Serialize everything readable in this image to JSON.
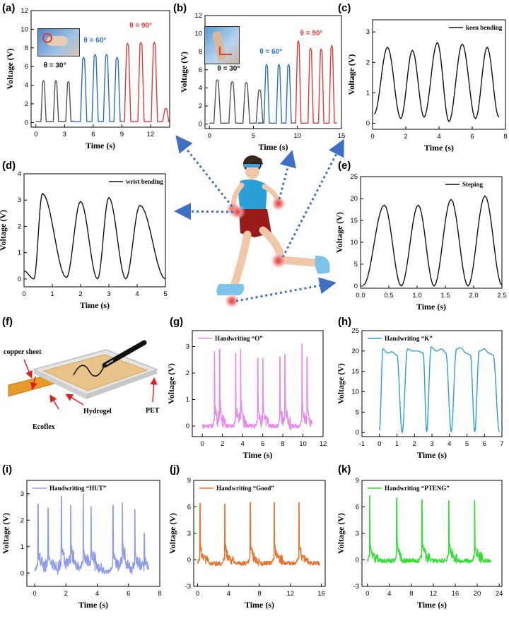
{
  "panels": {
    "a": {
      "label": "(a)"
    },
    "b": {
      "label": "(b)"
    },
    "c": {
      "label": "(c)"
    },
    "d": {
      "label": "(d)"
    },
    "e": {
      "label": "(e)"
    },
    "f": {
      "label": "(f)"
    },
    "g": {
      "label": "(g)"
    },
    "h": {
      "label": "(h)"
    },
    "i": {
      "label": "(i)"
    },
    "j": {
      "label": "(j)"
    },
    "k": {
      "label": "(k)"
    }
  },
  "diagram_f": {
    "copper_sheet": "copper sheet",
    "hydrogel": "Hydrogel",
    "ecoflex": "Ecoflex",
    "pet": "PET"
  },
  "colors": {
    "grey": "#555555",
    "blue": "#2f6fbf",
    "red": "#e23a3a",
    "black": "#111111",
    "violet": "#e58de6",
    "sky": "#2b9fd8",
    "lavender": "#8f9de8",
    "orange": "#e8742c",
    "green": "#33dd33",
    "arrow": "#3f6fc4"
  },
  "chart_data": [
    {
      "id": "a",
      "type": "line",
      "xlabel": "Time (s)",
      "ylabel": "Voltage (V)",
      "xlim": [
        -0.5,
        14
      ],
      "ylim": [
        -0.5,
        12
      ],
      "xticks": [
        0,
        3,
        6,
        9,
        12
      ],
      "yticks": [
        0,
        2,
        4,
        6,
        8,
        10,
        12
      ],
      "annotations": [
        {
          "text": "θ = 30°",
          "x": 0.8,
          "y": 5.9,
          "color": "#111111"
        },
        {
          "text": "θ = 60°",
          "x": 5.0,
          "y": 8.6,
          "color": "#2f6fbf"
        },
        {
          "text": "θ = 90°",
          "x": 9.8,
          "y": 10.2,
          "color": "#e23a3a"
        }
      ],
      "series": [
        {
          "color": "#555555",
          "shape": "pulse",
          "peaks": [
            [
              0.8,
              4.5
            ],
            [
              2.1,
              4.5
            ],
            [
              3.4,
              4.4
            ]
          ],
          "baseline": 0.1,
          "width": 0.5,
          "range": [
            0,
            4.0
          ]
        },
        {
          "color": "#2f6fbf",
          "shape": "pulse",
          "peaks": [
            [
              5.0,
              7.0
            ],
            [
              6.2,
              7.3
            ],
            [
              7.4,
              7.3
            ],
            [
              8.5,
              7.0
            ]
          ],
          "baseline": 0.1,
          "width": 0.6,
          "range": [
            4.0,
            9.0
          ]
        },
        {
          "color": "#e23a3a",
          "shape": "pulse",
          "peaks": [
            [
              9.6,
              8.5
            ],
            [
              11.0,
              8.6
            ],
            [
              12.4,
              8.6
            ],
            [
              13.6,
              1.5
            ]
          ],
          "baseline": 0.1,
          "width": 0.6,
          "range": [
            9.0,
            13.8
          ]
        }
      ]
    },
    {
      "id": "b",
      "type": "line",
      "xlabel": "Time (s)",
      "ylabel": "Voltage (V)",
      "xlim": [
        -0.5,
        15
      ],
      "ylim": [
        -0.5,
        12
      ],
      "xticks": [
        0,
        5,
        10,
        15
      ],
      "yticks": [
        0,
        2,
        4,
        6,
        8,
        10,
        12
      ],
      "annotations": [
        {
          "text": "θ = 30°",
          "x": 0.9,
          "y": 5.9,
          "color": "#111111"
        },
        {
          "text": "θ = 60°",
          "x": 5.7,
          "y": 7.8,
          "color": "#2f6fbf"
        },
        {
          "text": "θ = 90°",
          "x": 10.3,
          "y": 9.8,
          "color": "#e23a3a"
        }
      ],
      "series": [
        {
          "color": "#555555",
          "shape": "pulse",
          "peaks": [
            [
              0.9,
              4.9
            ],
            [
              2.6,
              4.7
            ],
            [
              4.2,
              4.6
            ],
            [
              5.7,
              3.8
            ]
          ],
          "baseline": 0.1,
          "width": 0.7,
          "range": [
            0,
            5.5
          ]
        },
        {
          "color": "#2f6fbf",
          "shape": "pulse",
          "peaks": [
            [
              6.5,
              6.6
            ],
            [
              7.9,
              6.6
            ],
            [
              9.0,
              6.6
            ]
          ],
          "baseline": 0.1,
          "width": 0.55,
          "range": [
            5.5,
            9.5
          ]
        },
        {
          "color": "#e23a3a",
          "shape": "pulse",
          "peaks": [
            [
              10.1,
              9.2
            ],
            [
              11.5,
              8.4
            ],
            [
              12.7,
              8.3
            ],
            [
              13.9,
              8.7
            ]
          ],
          "baseline": 0.1,
          "width": 0.55,
          "range": [
            9.5,
            14.5
          ]
        }
      ]
    },
    {
      "id": "c",
      "type": "line",
      "xlabel": "Time (s)",
      "ylabel": "Voltage (V)",
      "xlim": [
        0,
        8
      ],
      "ylim": [
        -0.2,
        3.4
      ],
      "xticks": [
        0,
        2,
        4,
        6,
        8
      ],
      "yticks": [
        0,
        1,
        2,
        3
      ],
      "legend": "keen bending",
      "legend_position": "top-right",
      "series": [
        {
          "color": "#111111",
          "shape": "wave",
          "peaks": [
            [
              0.9,
              2.5
            ],
            [
              2.4,
              2.4
            ],
            [
              3.9,
              2.65
            ],
            [
              5.4,
              2.6
            ],
            [
              6.9,
              2.5
            ]
          ],
          "troughs": [
            [
              0.1,
              0.3
            ],
            [
              1.7,
              0.15
            ],
            [
              3.1,
              0.2
            ],
            [
              4.6,
              0.05
            ],
            [
              6.2,
              0.15
            ],
            [
              7.6,
              0.2
            ]
          ]
        }
      ]
    },
    {
      "id": "d",
      "type": "line",
      "xlabel": "Time (s)",
      "ylabel": "Voltage (V)",
      "xlim": [
        0,
        5
      ],
      "ylim": [
        -0.3,
        4
      ],
      "xticks": [
        0,
        1,
        2,
        3,
        4,
        5
      ],
      "yticks": [
        0,
        1,
        2,
        3,
        4
      ],
      "legend": "wrist bending",
      "legend_position": "top-right",
      "series": [
        {
          "color": "#111111",
          "shape": "wave",
          "peaks": [
            [
              0.65,
              3.25
            ],
            [
              2.0,
              2.95
            ],
            [
              3.0,
              3.1
            ],
            [
              4.1,
              2.8
            ]
          ],
          "troughs": [
            [
              0.0,
              0.3
            ],
            [
              0.35,
              0.0
            ],
            [
              1.5,
              0.05
            ],
            [
              2.6,
              0.0
            ],
            [
              3.6,
              0.0
            ],
            [
              5.0,
              0.0
            ]
          ]
        }
      ]
    },
    {
      "id": "e",
      "type": "line",
      "xlabel": "Time (s)",
      "ylabel": "Voltage (V)",
      "xlim": [
        0,
        2.5
      ],
      "ylim": [
        -0.5,
        25
      ],
      "xticks": [
        0.0,
        0.5,
        1.0,
        1.5,
        2.0,
        2.5
      ],
      "yticks": [
        0,
        5,
        10,
        15,
        20,
        25
      ],
      "legend": "Steping",
      "legend_position": "top-right",
      "series": [
        {
          "color": "#111111",
          "shape": "wave",
          "peaks": [
            [
              0.42,
              18.5
            ],
            [
              1.02,
              18.5
            ],
            [
              1.6,
              19.8
            ],
            [
              2.2,
              20.6
            ]
          ],
          "troughs": [
            [
              0.05,
              0.2
            ],
            [
              0.72,
              0.0
            ],
            [
              1.3,
              0.0
            ],
            [
              1.9,
              0.0
            ],
            [
              2.5,
              0.2
            ]
          ]
        }
      ]
    },
    {
      "id": "g",
      "type": "line",
      "xlabel": "Time (s)",
      "ylabel": "Voltage (V)",
      "xlim": [
        -1,
        12
      ],
      "ylim": [
        -0.4,
        3.6
      ],
      "xticks": [
        0,
        2,
        4,
        6,
        8,
        10,
        12
      ],
      "yticks": [
        0,
        1,
        2,
        3
      ],
      "legend": "Handwriting “O”",
      "legend_position": "top-left",
      "series": [
        {
          "color": "#e58de6",
          "shape": "spike",
          "events": [
            [
              1.2,
              2.8
            ],
            [
              1.7,
              2.9
            ],
            [
              3.3,
              2.75
            ],
            [
              3.8,
              2.9
            ],
            [
              5.5,
              2.55
            ],
            [
              6.0,
              2.55
            ],
            [
              7.7,
              2.6
            ],
            [
              8.2,
              2.7
            ],
            [
              9.9,
              3.1
            ],
            [
              10.4,
              2.6
            ]
          ],
          "pre": 0.6,
          "baseline": 0.0,
          "xrange": [
            0,
            10.9
          ]
        }
      ]
    },
    {
      "id": "h",
      "type": "line",
      "xlabel": "Time (s)",
      "ylabel": "Voltage (V)",
      "xlim": [
        -1,
        7
      ],
      "ylim": [
        -1,
        25
      ],
      "xticks": [
        -1,
        0,
        1,
        2,
        3,
        4,
        5,
        6,
        7
      ],
      "yticks": [
        0,
        5,
        10,
        15,
        20,
        25
      ],
      "legend": "Handwriting “K”",
      "legend_position": "top-left",
      "series": [
        {
          "color": "#2b9fd8",
          "shape": "wave",
          "peaks": [
            [
              0.2,
              20.5
            ],
            [
              0.45,
              19.5
            ],
            [
              0.7,
              19.8
            ],
            [
              1.0,
              19.0
            ],
            [
              1.6,
              20.5
            ],
            [
              1.9,
              20.0
            ],
            [
              2.2,
              20.0
            ],
            [
              2.5,
              19.5
            ],
            [
              2.95,
              21.0
            ],
            [
              3.25,
              20.0
            ],
            [
              3.55,
              20.5
            ],
            [
              3.8,
              19.5
            ],
            [
              4.4,
              20.5
            ],
            [
              4.65,
              20.8
            ],
            [
              4.95,
              19.5
            ],
            [
              5.2,
              19.0
            ],
            [
              5.7,
              20.0
            ],
            [
              6.0,
              20.5
            ],
            [
              6.25,
              19.5
            ],
            [
              6.5,
              19.0
            ]
          ],
          "troughs": [
            [
              0.0,
              0.5
            ],
            [
              1.3,
              0.0
            ],
            [
              2.7,
              0.2
            ],
            [
              4.1,
              0.2
            ],
            [
              5.45,
              0.2
            ],
            [
              6.85,
              0.2
            ]
          ]
        }
      ]
    },
    {
      "id": "i",
      "type": "line",
      "xlabel": "Time (s)",
      "ylabel": "Voltage (V)",
      "xlim": [
        -0.5,
        8
      ],
      "ylim": [
        -0.5,
        3.5
      ],
      "xticks": [
        0,
        2,
        4,
        6,
        8
      ],
      "yticks": [
        0,
        1,
        2,
        3
      ],
      "legend": "Handwriting “HUT”",
      "legend_position": "top-left",
      "series": [
        {
          "color": "#8f9de8",
          "shape": "spike",
          "events": [
            [
              0.2,
              2.6
            ],
            [
              0.85,
              2.45
            ],
            [
              1.7,
              2.9
            ],
            [
              2.3,
              2.55
            ],
            [
              3.1,
              3.0
            ],
            [
              3.6,
              2.5
            ],
            [
              5.0,
              2.55
            ],
            [
              5.6,
              2.65
            ],
            [
              6.4,
              2.4
            ],
            [
              7.0,
              1.5
            ]
          ],
          "pre": 0.8,
          "baseline": 0.05,
          "xrange": [
            0,
            7.3
          ]
        }
      ]
    },
    {
      "id": "j",
      "type": "line",
      "xlabel": "Time (s)",
      "ylabel": "Voltage (V)",
      "xlim": [
        -0.5,
        16.5
      ],
      "ylim": [
        -3,
        9
      ],
      "xticks": [
        0,
        4,
        8,
        12,
        16
      ],
      "yticks": [
        -3,
        0,
        3,
        6,
        9
      ],
      "legend": "Handwriting “Good”",
      "legend_position": "top-left",
      "series": [
        {
          "color": "#e8742c",
          "shape": "spike",
          "events": [
            [
              0.3,
              6.4
            ],
            [
              3.5,
              6.3
            ],
            [
              6.8,
              6.5
            ],
            [
              9.9,
              6.5
            ],
            [
              13.1,
              6.5
            ]
          ],
          "pre": 1.2,
          "baseline": -0.4,
          "xrange": [
            0,
            15.8
          ]
        }
      ]
    },
    {
      "id": "k",
      "type": "line",
      "xlabel": "Time (s)",
      "ylabel": "Voltage (V)",
      "xlim": [
        -1,
        24.5
      ],
      "ylim": [
        -3,
        9
      ],
      "xticks": [
        0,
        4,
        8,
        12,
        16,
        20,
        24
      ],
      "yticks": [
        -3,
        0,
        3,
        6,
        9
      ],
      "legend": "Handwriting “PTENG”",
      "legend_position": "top-left",
      "series": [
        {
          "color": "#33dd33",
          "shape": "spike",
          "events": [
            [
              0.4,
              7.3
            ],
            [
              5.3,
              7.0
            ],
            [
              9.9,
              6.8
            ],
            [
              14.8,
              6.7
            ],
            [
              19.5,
              6.7
            ]
          ],
          "pre": 1.5,
          "baseline": -0.1,
          "xrange": [
            0,
            22.5
          ]
        }
      ]
    }
  ]
}
